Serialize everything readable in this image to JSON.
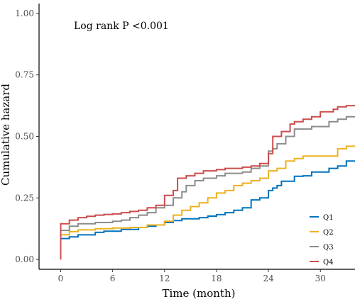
{
  "chart_data": {
    "type": "line",
    "step": true,
    "title": "",
    "xlabel": "Time (month)",
    "ylabel": "Cumulative hazard",
    "annotation": "Log rank P <0.001",
    "xlim": [
      -2.5,
      34
    ],
    "ylim": [
      -0.04,
      1.04
    ],
    "xticks": [
      0,
      6,
      12,
      18,
      24,
      30
    ],
    "yticks": [
      0,
      0.25,
      0.5,
      0.75,
      1
    ],
    "ytick_labels": [
      "0.00",
      "0.25",
      "0.50",
      "0.75",
      "1.00"
    ],
    "legend_position": "bottom-right",
    "grid": false,
    "series": [
      {
        "name": "Q1",
        "color": "#0072BD",
        "points": [
          [
            0,
            0
          ],
          [
            0,
            0.085
          ],
          [
            1,
            0.092
          ],
          [
            2,
            0.1
          ],
          [
            4,
            0.11
          ],
          [
            5,
            0.115
          ],
          [
            7,
            0.122
          ],
          [
            9,
            0.13
          ],
          [
            10,
            0.135
          ],
          [
            11,
            0.14
          ],
          [
            12,
            0.15
          ],
          [
            13,
            0.158
          ],
          [
            14,
            0.165
          ],
          [
            16,
            0.17
          ],
          [
            17,
            0.176
          ],
          [
            18,
            0.182
          ],
          [
            19,
            0.19
          ],
          [
            20,
            0.2
          ],
          [
            21,
            0.21
          ],
          [
            22,
            0.242
          ],
          [
            23,
            0.25
          ],
          [
            24,
            0.28
          ],
          [
            24.5,
            0.29
          ],
          [
            25,
            0.3
          ],
          [
            25.5,
            0.318
          ],
          [
            27,
            0.338
          ],
          [
            28,
            0.34
          ],
          [
            29,
            0.355
          ],
          [
            31,
            0.37
          ],
          [
            32,
            0.38
          ],
          [
            33,
            0.4
          ],
          [
            34,
            0.4
          ]
        ]
      },
      {
        "name": "Q2",
        "color": "#EDB120",
        "points": [
          [
            0,
            0
          ],
          [
            0,
            0.1
          ],
          [
            1,
            0.113
          ],
          [
            2,
            0.12
          ],
          [
            4,
            0.125
          ],
          [
            6,
            0.128
          ],
          [
            8,
            0.13
          ],
          [
            10,
            0.14
          ],
          [
            12,
            0.155
          ],
          [
            13,
            0.18
          ],
          [
            14,
            0.2
          ],
          [
            15,
            0.215
          ],
          [
            16,
            0.23
          ],
          [
            17,
            0.25
          ],
          [
            18,
            0.27
          ],
          [
            19,
            0.28
          ],
          [
            20,
            0.3
          ],
          [
            21,
            0.31
          ],
          [
            22,
            0.32
          ],
          [
            23,
            0.33
          ],
          [
            24,
            0.36
          ],
          [
            25,
            0.37
          ],
          [
            26,
            0.4
          ],
          [
            27,
            0.41
          ],
          [
            28,
            0.42
          ],
          [
            29,
            0.42
          ],
          [
            32,
            0.45
          ],
          [
            33,
            0.46
          ],
          [
            34,
            0.46
          ]
        ]
      },
      {
        "name": "Q3",
        "color": "#8C8C8C",
        "points": [
          [
            0,
            0
          ],
          [
            0,
            0.118
          ],
          [
            1,
            0.135
          ],
          [
            2,
            0.145
          ],
          [
            4,
            0.15
          ],
          [
            6,
            0.155
          ],
          [
            7,
            0.16
          ],
          [
            8,
            0.17
          ],
          [
            9,
            0.18
          ],
          [
            10,
            0.19
          ],
          [
            11,
            0.21
          ],
          [
            12,
            0.22
          ],
          [
            13,
            0.25
          ],
          [
            14,
            0.275
          ],
          [
            14.5,
            0.3
          ],
          [
            15.5,
            0.32
          ],
          [
            16.5,
            0.33
          ],
          [
            18,
            0.34
          ],
          [
            19,
            0.35
          ],
          [
            20,
            0.35
          ],
          [
            21,
            0.355
          ],
          [
            22,
            0.37
          ],
          [
            23,
            0.38
          ],
          [
            24,
            0.44
          ],
          [
            24.5,
            0.45
          ],
          [
            25,
            0.47
          ],
          [
            26,
            0.5
          ],
          [
            27,
            0.53
          ],
          [
            29,
            0.54
          ],
          [
            31,
            0.56
          ],
          [
            32,
            0.57
          ],
          [
            33,
            0.58
          ],
          [
            34,
            0.58
          ]
        ]
      },
      {
        "name": "Q4",
        "color": "#CC4C4C",
        "points": [
          [
            0,
            0
          ],
          [
            0,
            0.145
          ],
          [
            1,
            0.16
          ],
          [
            2,
            0.17
          ],
          [
            3,
            0.175
          ],
          [
            4,
            0.18
          ],
          [
            5,
            0.183
          ],
          [
            6,
            0.185
          ],
          [
            7,
            0.19
          ],
          [
            8,
            0.195
          ],
          [
            9,
            0.2
          ],
          [
            10,
            0.21
          ],
          [
            11,
            0.22
          ],
          [
            12,
            0.26
          ],
          [
            13,
            0.28
          ],
          [
            13.5,
            0.33
          ],
          [
            14.5,
            0.34
          ],
          [
            15.5,
            0.35
          ],
          [
            16.5,
            0.36
          ],
          [
            18,
            0.365
          ],
          [
            19,
            0.37
          ],
          [
            20,
            0.37
          ],
          [
            21,
            0.375
          ],
          [
            22,
            0.38
          ],
          [
            23,
            0.39
          ],
          [
            24,
            0.43
          ],
          [
            24.5,
            0.5
          ],
          [
            25.5,
            0.52
          ],
          [
            26.5,
            0.55
          ],
          [
            27,
            0.56
          ],
          [
            28,
            0.57
          ],
          [
            29,
            0.58
          ],
          [
            30,
            0.6
          ],
          [
            31.5,
            0.61
          ],
          [
            32,
            0.62
          ],
          [
            33,
            0.625
          ],
          [
            34,
            0.625
          ]
        ]
      }
    ]
  }
}
